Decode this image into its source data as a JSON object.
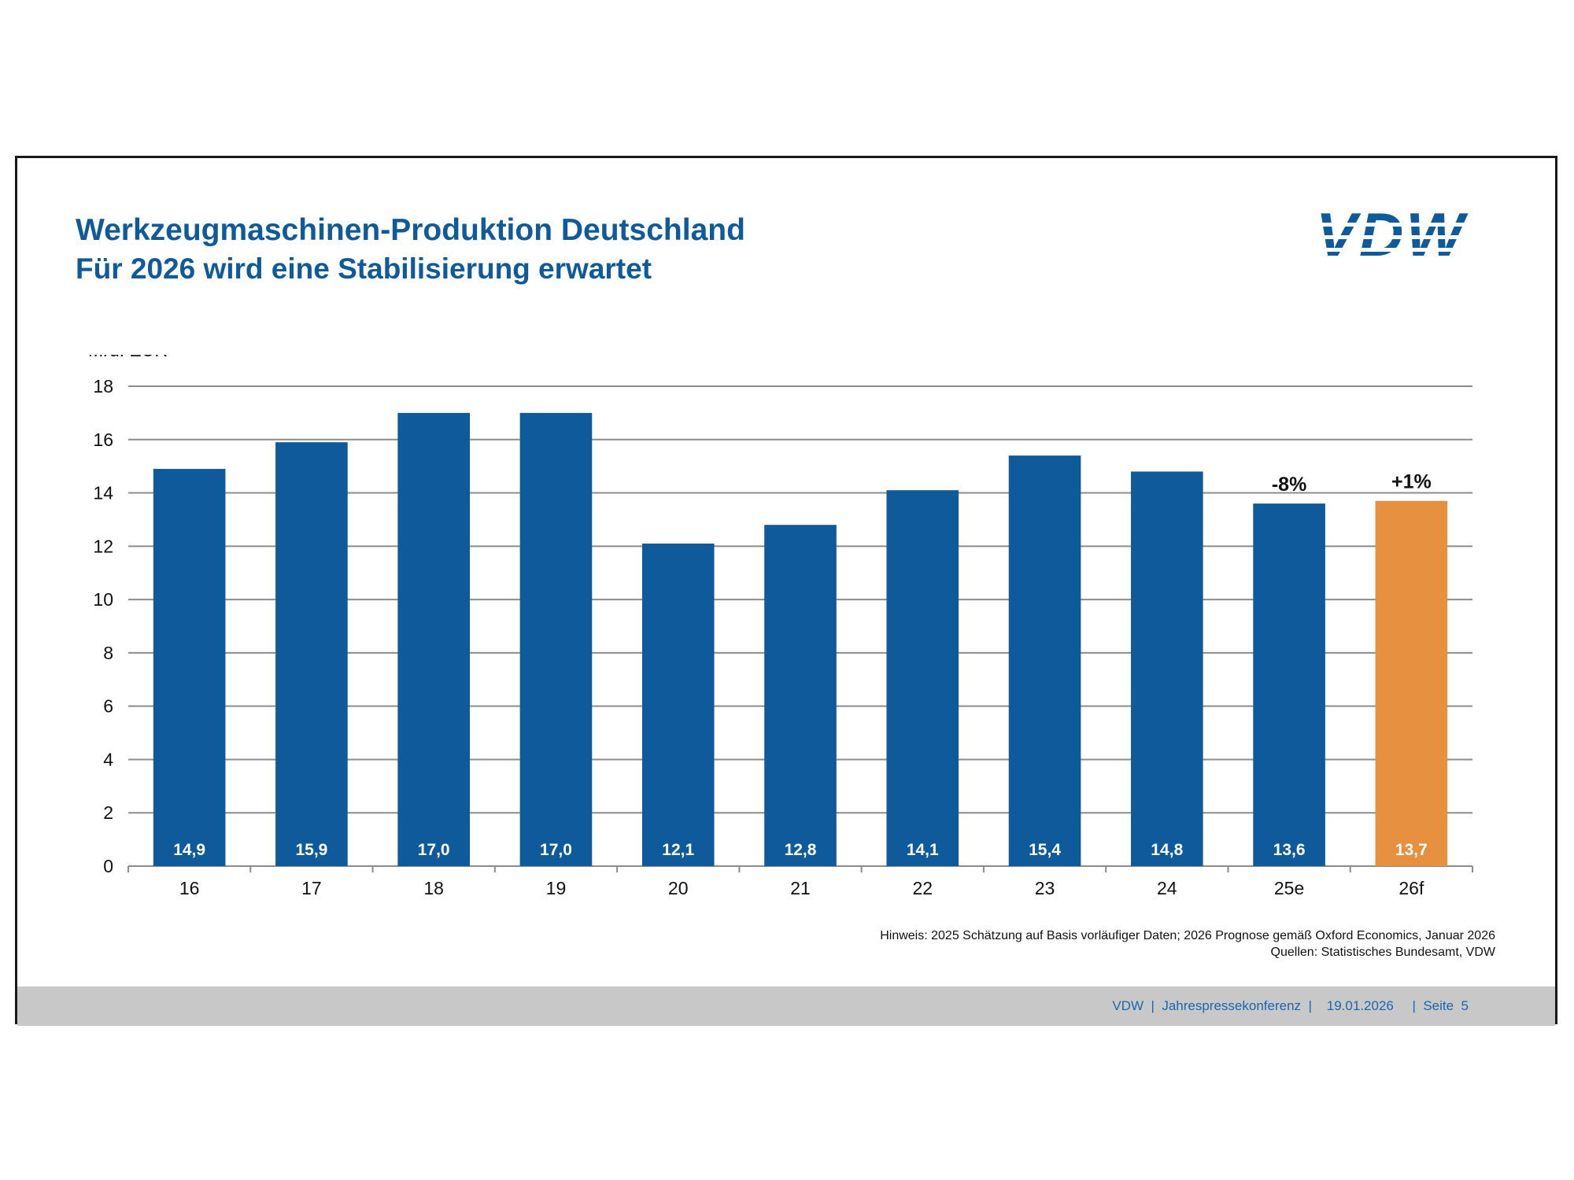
{
  "header": {
    "title": "Werkzeugmaschinen-Produktion Deutschland",
    "subtitle": "Für 2026 wird eine Stabilisierung erwartet",
    "logo_text": "VDW"
  },
  "chart_data": {
    "type": "bar",
    "title": "Werkzeugmaschinen-Produktion Deutschland",
    "subtitle": "Für 2026 wird eine Stabilisierung erwartet",
    "ylabel": "Mrd. EUR",
    "xlabel": "",
    "ylim": [
      0,
      18
    ],
    "yticks": [
      0,
      2,
      4,
      6,
      8,
      10,
      12,
      14,
      16,
      18
    ],
    "grid": true,
    "categories": [
      "16",
      "17",
      "18",
      "19",
      "20",
      "21",
      "22",
      "23",
      "24",
      "25e",
      "26f"
    ],
    "values": [
      14.9,
      15.9,
      17.0,
      17.0,
      12.1,
      12.8,
      14.1,
      15.4,
      14.8,
      13.6,
      13.7
    ],
    "value_labels": [
      "14,9",
      "15,9",
      "17,0",
      "17,0",
      "12,1",
      "12,8",
      "14,1",
      "15,4",
      "14,8",
      "13,6",
      "13,7"
    ],
    "colors": [
      "#0f5a9a",
      "#0f5a9a",
      "#0f5a9a",
      "#0f5a9a",
      "#0f5a9a",
      "#0f5a9a",
      "#0f5a9a",
      "#0f5a9a",
      "#0f5a9a",
      "#0f5a9a",
      "#e69040"
    ],
    "annotations": [
      {
        "category": "25e",
        "text": "-8%"
      },
      {
        "category": "26f",
        "text": "+1%"
      }
    ]
  },
  "notes": {
    "line1": "Hinweis: 2025 Schätzung auf Basis vorläufiger Daten; 2026 Prognose gemäß Oxford Economics, Januar 2026",
    "line2": "Quellen: Statistisches Bundesamt, VDW"
  },
  "footer": {
    "text": "VDW  |  Jahrespressekonferenz  |    19.01.2026     |  Seite  5"
  },
  "colors": {
    "accent": "#0f5a9a",
    "forecast": "#e69040",
    "footer_bg": "#c8c8c8"
  }
}
